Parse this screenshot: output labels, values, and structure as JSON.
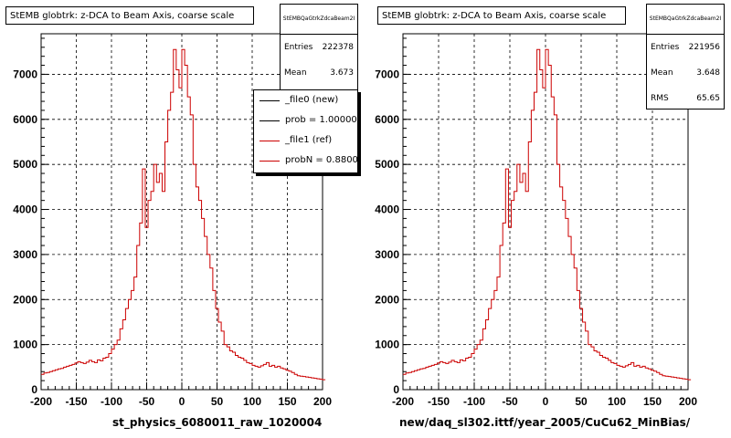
{
  "panels": [
    {
      "title": "StEMB globtrk: z-DCA to Beam Axis, coarse scale",
      "stats": {
        "name": "StEMBQaGtrkZdcaBeam2I",
        "rows": [
          {
            "label": "Entries",
            "value": "222378"
          },
          {
            "label": "Mean",
            "value": "3.673"
          }
        ]
      },
      "legend": [
        {
          "label": "_file0 (new)",
          "color": "#000000"
        },
        {
          "label": "prob = 1.000000",
          "color": "#000000"
        },
        {
          "label": "_file1 (ref)",
          "color": "#cc0000"
        },
        {
          "label": "probN = 0.880066",
          "color": "#cc0000"
        }
      ],
      "xtitle": "st_physics_6080011_raw_1020004"
    },
    {
      "title": "StEMB globtrk: z-DCA to Beam Axis, coarse scale",
      "stats": {
        "name": "StEMBQaGtrkZdcaBeam2I",
        "rows": [
          {
            "label": "Entries",
            "value": "221956"
          },
          {
            "label": "Mean",
            "value": "3.648"
          },
          {
            "label": "RMS",
            "value": "65.65"
          }
        ]
      },
      "xtitle": "new/daq_sl302.ittf/year_2005/CuCu62_MinBias/"
    }
  ],
  "chart_data": {
    "type": "line",
    "xlim": [
      -200,
      200
    ],
    "ylim": [
      0,
      7900
    ],
    "x_ticks": [
      -200,
      -150,
      -100,
      -50,
      0,
      50,
      100,
      150,
      200
    ],
    "y_ticks": [
      0,
      1000,
      2000,
      3000,
      4000,
      5000,
      6000,
      7000
    ],
    "grid": true,
    "line_color": "#cc0000",
    "bin_edges_start": -200,
    "bin_width": 4,
    "values": [
      340,
      370,
      380,
      400,
      420,
      440,
      460,
      470,
      500,
      520,
      540,
      560,
      590,
      620,
      600,
      580,
      610,
      650,
      620,
      600,
      660,
      640,
      700,
      720,
      800,
      900,
      1000,
      1100,
      1350,
      1550,
      1800,
      2000,
      2200,
      2500,
      3200,
      3700,
      4900,
      3600,
      4200,
      4400,
      5000,
      4600,
      4800,
      4400,
      5500,
      6200,
      6600,
      7550,
      7100,
      6700,
      7550,
      7200,
      6500,
      6100,
      5000,
      4500,
      4200,
      3800,
      3400,
      3000,
      2700,
      2200,
      1800,
      1500,
      1300,
      1000,
      950,
      860,
      830,
      760,
      720,
      700,
      650,
      600,
      580,
      540,
      520,
      500,
      530,
      560,
      600,
      520,
      540,
      500,
      520,
      480,
      460,
      430,
      410,
      380,
      340,
      310,
      300,
      290,
      280,
      270,
      260,
      250,
      240,
      230,
      220
    ]
  }
}
